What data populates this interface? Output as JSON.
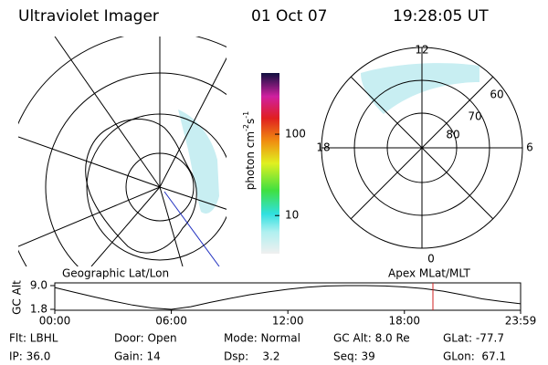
{
  "header": {
    "title": "Ultraviolet Imager",
    "date": "01 Oct 07",
    "time": "19:28:05 UT"
  },
  "colorbar": {
    "label": "photon cm",
    "exp1": "-2",
    "unit2": "s",
    "exp2": "-1",
    "log": true,
    "range": [
      3.4,
      565
    ],
    "ticks": [
      10,
      100
    ]
  },
  "polar": {
    "mlt_labels": [
      "12",
      "18",
      "6",
      "0"
    ],
    "lat_labels": [
      "60",
      "70",
      "80"
    ]
  },
  "altitude": {
    "ylabel": "GC Alt",
    "left_title": "Geographic Lat/Lon",
    "right_title": "Apex MLat/MLT",
    "ylim": [
      1.8,
      9.0
    ],
    "yticks": [
      {
        "value": 9.0,
        "label": "9.0"
      },
      {
        "value": 1.8,
        "label": "1.8"
      }
    ],
    "xlim": [
      0,
      23.983
    ],
    "xticks": [
      {
        "value": 0,
        "label": "00:00"
      },
      {
        "value": 6,
        "label": "06:00"
      },
      {
        "value": 12,
        "label": "12:00"
      },
      {
        "value": 18,
        "label": "18:00"
      },
      {
        "value": 23.983,
        "label": "23:59"
      }
    ],
    "x": [
      0,
      1,
      2,
      3,
      4,
      5,
      6,
      7,
      8,
      9,
      10,
      11,
      12,
      13,
      14,
      15,
      16,
      17,
      18,
      19,
      20,
      21,
      22,
      23,
      23.983
    ],
    "values": [
      8.4,
      7.0,
      5.6,
      4.3,
      3.1,
      2.2,
      1.8,
      2.6,
      3.9,
      5.1,
      6.2,
      7.1,
      7.9,
      8.5,
      8.9,
      9.0,
      9.0,
      8.9,
      8.6,
      8.1,
      7.3,
      6.2,
      5.0,
      4.2,
      3.5
    ],
    "marker_x": 19.468,
    "marker_color": "#d02020"
  },
  "footer": {
    "rows": [
      [
        "Flt: LBHL",
        "Door: Open",
        "Mode: Normal",
        "GC Alt: 8.0 Re",
        "GLat: -77.7"
      ],
      [
        "IP: 36.0",
        "Gain: 14",
        "Dsp:    3.2",
        "Seq: 39",
        "GLon:  67.1"
      ]
    ]
  }
}
